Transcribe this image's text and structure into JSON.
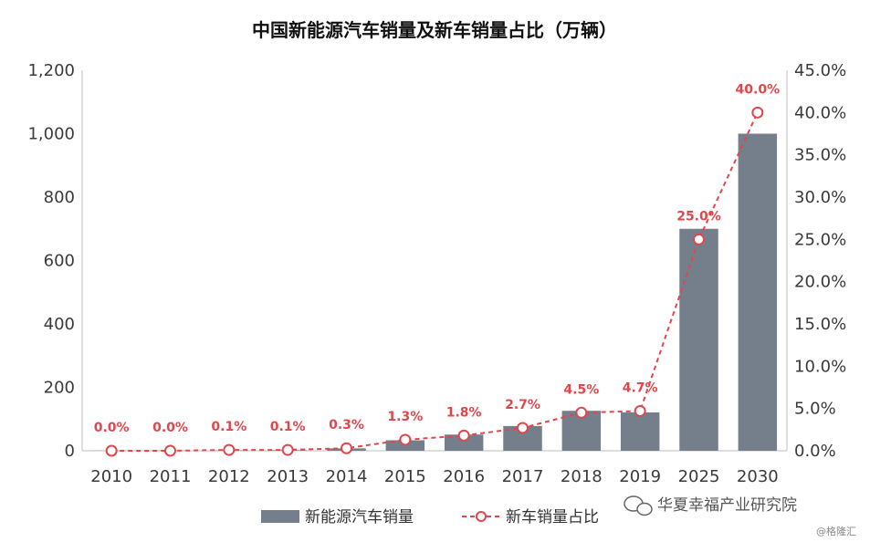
{
  "chart_data": {
    "type": "bar+line",
    "title": "中国新能源汽车销量及新车销量占比（万辆）",
    "categories": [
      "2010",
      "2011",
      "2012",
      "2013",
      "2014",
      "2015",
      "2016",
      "2017",
      "2018",
      "2019",
      "2025",
      "2030"
    ],
    "series": [
      {
        "name": "新能源汽车销量",
        "type": "bar",
        "axis": "left",
        "color": "#757e8b",
        "values": [
          0.5,
          0.8,
          1.3,
          1.8,
          7.5,
          33,
          51,
          78,
          126,
          121,
          700,
          1000
        ]
      },
      {
        "name": "新车销量占比",
        "type": "line",
        "axis": "right",
        "color": "#e0474c",
        "values": [
          0.0,
          0.0,
          0.1,
          0.1,
          0.3,
          1.3,
          1.8,
          2.7,
          4.5,
          4.7,
          25.0,
          40.0
        ],
        "labels": [
          "0.0%",
          "0.0%",
          "0.1%",
          "0.1%",
          "0.3%",
          "1.3%",
          "1.8%",
          "2.7%",
          "4.5%",
          "4.7%",
          "25.0%",
          "40.0%"
        ]
      }
    ],
    "ylim_left": [
      0,
      1200
    ],
    "ylim_right": [
      0,
      45
    ],
    "left_ticks": [
      "0",
      "200",
      "400",
      "600",
      "800",
      "1,000",
      "1,200"
    ],
    "right_ticks": [
      "0.0%",
      "5.0%",
      "10.0%",
      "15.0%",
      "20.0%",
      "25.0%",
      "30.0%",
      "35.0%",
      "40.0%",
      "45.0%"
    ],
    "grid": false,
    "legend_position": "bottom"
  },
  "watermark": {
    "main": "华夏幸福产业研究院",
    "sub": "@格隆汇",
    "icon": "wechat-icon"
  }
}
